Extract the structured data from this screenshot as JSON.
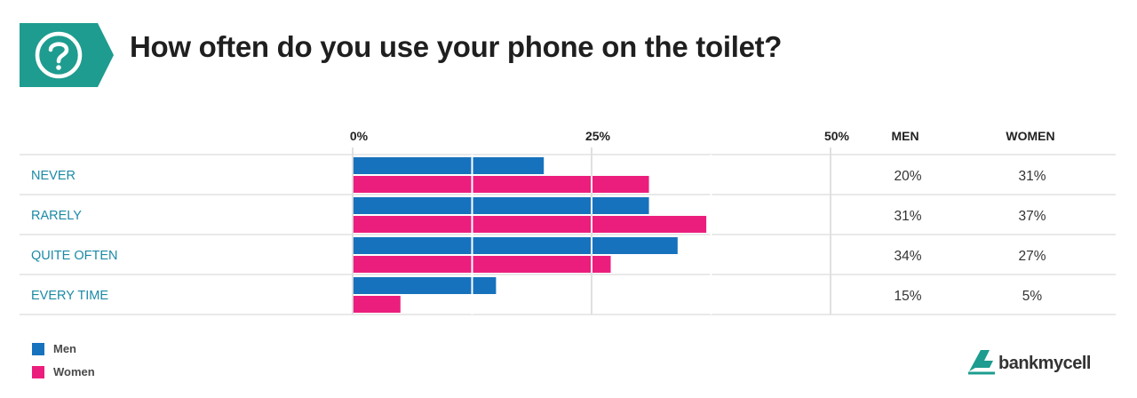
{
  "title": "How often do you use your phone on the toilet?",
  "colors": {
    "men": "#1772bd",
    "women": "#ec1e7d",
    "teal": "#1e9c8f",
    "label": "#1b8aa6"
  },
  "chart_data": {
    "type": "bar",
    "orientation": "horizontal",
    "categories": [
      "NEVER",
      "RARELY",
      "QUITE OFTEN",
      "EVERY TIME"
    ],
    "series": [
      {
        "name": "Men",
        "values": [
          20,
          31,
          34,
          15
        ]
      },
      {
        "name": "Women",
        "values": [
          31,
          37,
          27,
          5
        ]
      }
    ],
    "ticks": [
      "0%",
      "25%",
      "50%"
    ],
    "tick_values": [
      0,
      25,
      50
    ],
    "xlim": [
      0,
      50
    ],
    "column_headers": [
      "MEN",
      "WOMEN"
    ],
    "data_labels": {
      "men": [
        "20%",
        "31%",
        "34%",
        "15%"
      ],
      "women": [
        "31%",
        "37%",
        "27%",
        "5%"
      ]
    },
    "legend_placement": "bottom-left"
  },
  "legend": {
    "men": "Men",
    "women": "Women"
  },
  "logo": {
    "text": "bankmycell",
    "icon": "bankmycell-logo-icon"
  }
}
